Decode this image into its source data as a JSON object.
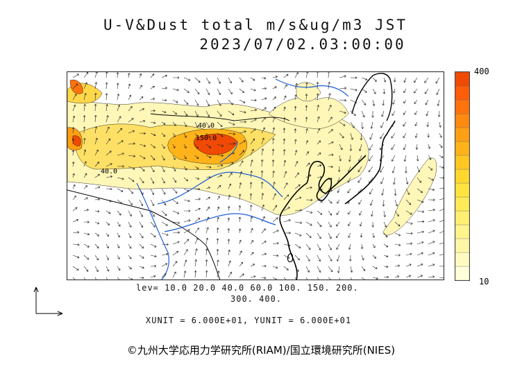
{
  "title": {
    "line1": "U-V&Dust total m/s&ug/m3 JST",
    "line2": "2023/07/02.03:00:00"
  },
  "colorbar": {
    "max_label": "400",
    "min_label": "10",
    "colors": [
      "#ffffd9",
      "#fffbc0",
      "#fff7a6",
      "#fff38c",
      "#ffef72",
      "#ffea57",
      "#ffe43f",
      "#ffd82e",
      "#ffc722",
      "#ffb31a",
      "#ff9f14",
      "#ff8a10",
      "#ff730c",
      "#ff5c08",
      "#f04a05"
    ]
  },
  "levels": {
    "line1": "lev= 10.0 20.0 40.0 60.0 100. 150. 200.",
    "line2": "300. 400."
  },
  "map_labels": {
    "contour_40": "40.0",
    "contour_150": "150.0",
    "contour_40b": "40.0"
  },
  "units": {
    "line": "XUNIT = 6.000E+01, YUNIT = 6.000E+01"
  },
  "copyright": "©九州大学応用力学研究所(RIAM)/国立環境研究所(NIES)",
  "colors": {
    "coast": "#000000",
    "river": "#1e5fd6",
    "low_dust": "#fff7b8",
    "mid_dust": "#ffd84a",
    "high_dust": "#ff8a1a",
    "peak_dust": "#f04a05"
  }
}
